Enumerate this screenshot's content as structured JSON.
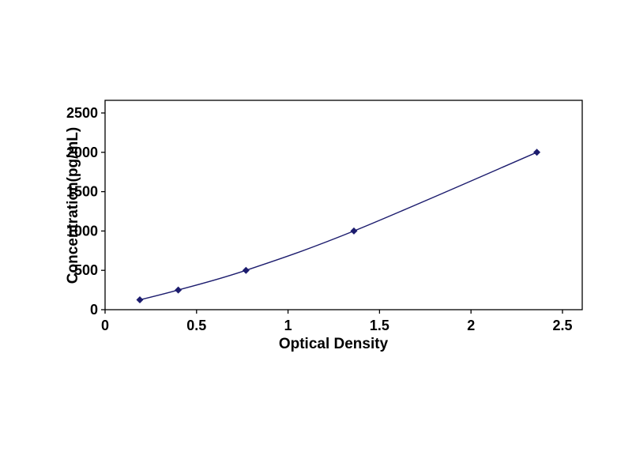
{
  "chart_data": {
    "type": "line",
    "title": "",
    "xlabel": "Optical Density",
    "ylabel": "Concentration(pg/mL)",
    "x": [
      0.19,
      0.4,
      0.77,
      1.36,
      2.36
    ],
    "y": [
      125,
      250,
      500,
      1000,
      2000
    ],
    "xlim": [
      0,
      2.5
    ],
    "ylim": [
      0,
      2500
    ],
    "x_tick_values": [
      0,
      0.5,
      1,
      1.5,
      2,
      2.5
    ],
    "x_tick_labels": [
      "0",
      "0.5",
      "1",
      "1.5",
      "2",
      "2.5"
    ],
    "y_tick_values": [
      0,
      500,
      1000,
      1500,
      2000,
      2500
    ],
    "y_tick_labels": [
      "0",
      "500",
      "1000",
      "1500",
      "2000",
      "2500"
    ],
    "grid": false,
    "legend_position": "none",
    "line_color": "#1c1c6e",
    "marker": "diamond",
    "marker_color": "#1c1c6e",
    "frame_color": "#000000",
    "text_color": "#000000",
    "background": "#ffffff"
  }
}
